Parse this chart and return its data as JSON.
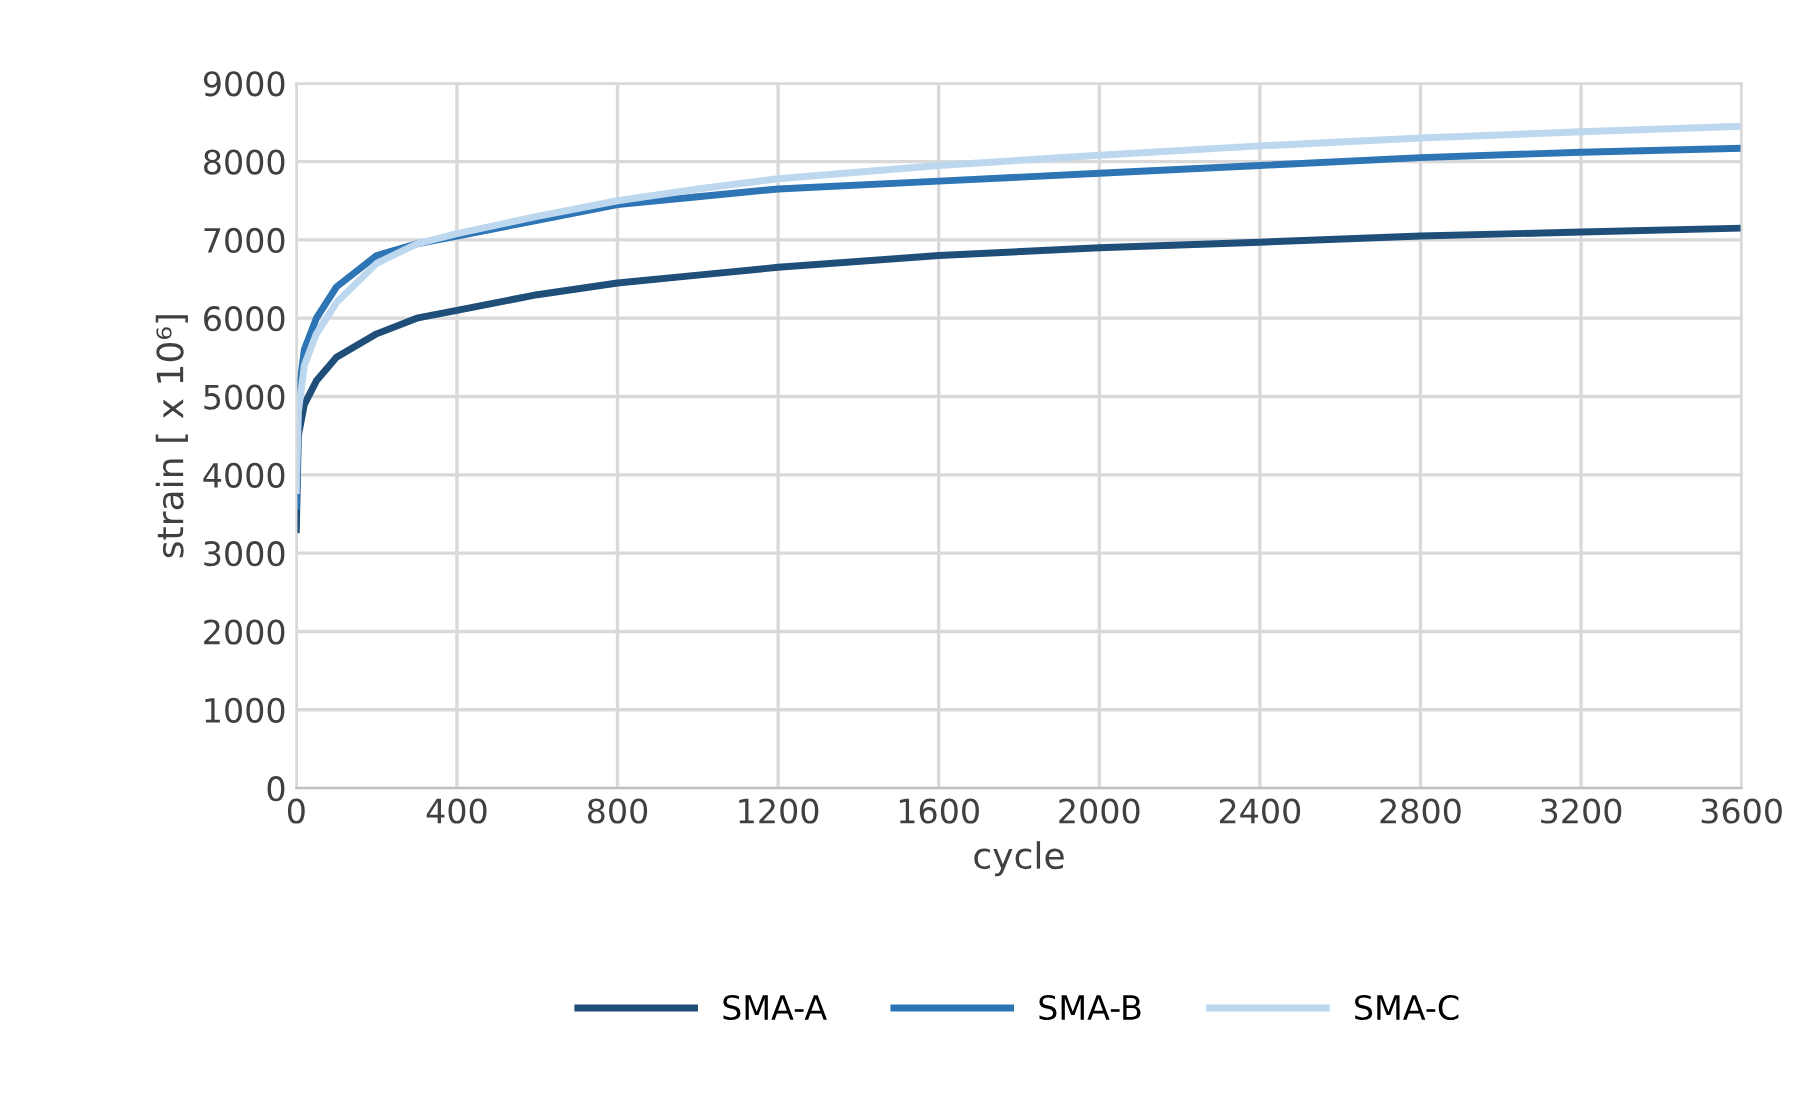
{
  "chart_data": {
    "type": "line",
    "xlabel": "cycle",
    "ylabel": "strain [ x 10⁶]",
    "x": [
      0,
      5,
      20,
      50,
      100,
      200,
      300,
      400,
      600,
      800,
      1000,
      1200,
      1600,
      2000,
      2400,
      2800,
      3200,
      3600
    ],
    "series": [
      {
        "name": "SMA-A",
        "color": "#1f4e79",
        "values": [
          3300,
          4500,
          4900,
          5200,
          5500,
          5800,
          6000,
          6100,
          6300,
          6450,
          6550,
          6650,
          6800,
          6900,
          6970,
          7050,
          7100,
          7150
        ]
      },
      {
        "name": "SMA-B",
        "color": "#2e75b6",
        "values": [
          3600,
          5000,
          5600,
          6000,
          6400,
          6800,
          6950,
          7050,
          7250,
          7450,
          7550,
          7650,
          7750,
          7850,
          7950,
          8050,
          8120,
          8170
        ]
      },
      {
        "name": "SMA-C",
        "color": "#bdd7ee",
        "values": [
          3800,
          4800,
          5400,
          5800,
          6200,
          6700,
          6950,
          7080,
          7300,
          7500,
          7650,
          7780,
          7950,
          8080,
          8200,
          8300,
          8380,
          8450
        ]
      }
    ],
    "xlim": [
      0,
      3600
    ],
    "xticks": [
      0,
      400,
      800,
      1200,
      1600,
      2000,
      2400,
      2800,
      3200,
      3600
    ],
    "ylim": [
      0,
      9000
    ],
    "yticks": [
      0,
      1000,
      2000,
      3000,
      4000,
      5000,
      6000,
      7000,
      8000,
      9000
    ],
    "grid": true,
    "legend": "bottom",
    "marker": "none",
    "line_style": "solid"
  }
}
